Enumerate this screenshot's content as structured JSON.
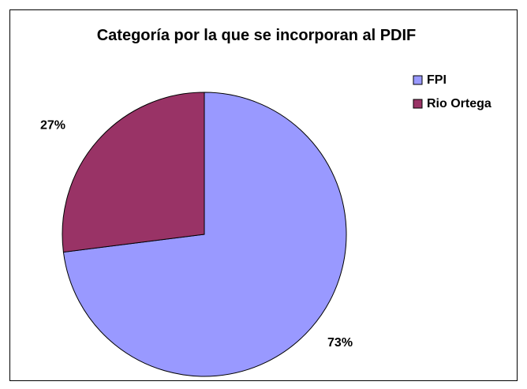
{
  "chart_data": {
    "type": "pie",
    "title": "Categoría por la que se incorporan al PDIF",
    "categories": [
      "FPI",
      "Rio Ortega"
    ],
    "values": [
      73,
      27
    ],
    "value_labels": [
      "73%",
      "27%"
    ],
    "colors": [
      "#9999ff",
      "#993366"
    ],
    "legend": "right"
  }
}
